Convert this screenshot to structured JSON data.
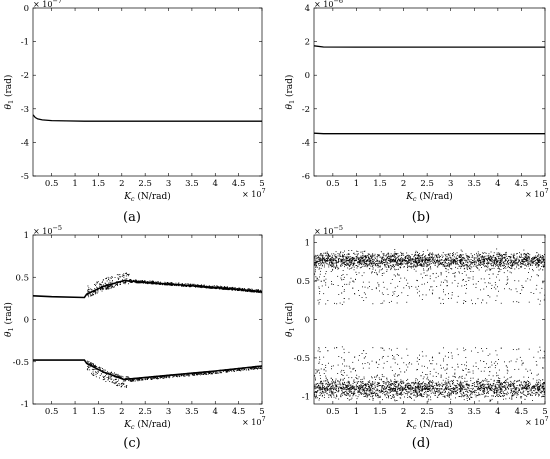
{
  "chart_data": [
    {
      "id": "a",
      "type": "line",
      "caption": "(a)",
      "xlabel_sym": "K",
      "xlabel_sub": "c",
      "xlabel_unit": " (N/rad)",
      "ylabel_sym": "θ",
      "ylabel_sub": "1",
      "ylabel_unit": " (rad)",
      "y_multiplier_base": "× 10",
      "y_multiplier_exp": "−7",
      "x_multiplier_base": "× 10",
      "x_multiplier_exp": "7",
      "xlim": [
        0.1,
        5
      ],
      "ylim": [
        -5,
        0
      ],
      "xticks": [
        0.5,
        1,
        1.5,
        2,
        2.5,
        3,
        3.5,
        4,
        4.5,
        5
      ],
      "xtick_labels": [
        "0.5",
        "1",
        "1.5",
        "2",
        "2.5",
        "3",
        "3.5",
        "4",
        "4.5",
        "5"
      ],
      "yticks": [
        -5,
        -4,
        -3,
        -2,
        -1,
        0
      ],
      "ytick_labels": [
        "-5",
        "-4",
        "-3",
        "-2",
        "-1",
        "0"
      ],
      "series": [
        {
          "x": [
            0.1,
            0.15,
            0.2,
            0.3,
            0.5,
            0.8,
            1.2,
            2,
            3,
            4,
            5
          ],
          "y": [
            -3.18,
            -3.26,
            -3.3,
            -3.33,
            -3.35,
            -3.36,
            -3.37,
            -3.37,
            -3.37,
            -3.37,
            -3.37
          ]
        }
      ]
    },
    {
      "id": "b",
      "type": "line",
      "caption": "(b)",
      "xlabel_sym": "K",
      "xlabel_sub": "c",
      "xlabel_unit": " (N/rad)",
      "ylabel_sym": "θ",
      "ylabel_sub": "1",
      "ylabel_unit": " (rad)",
      "y_multiplier_base": "× 10",
      "y_multiplier_exp": "−6",
      "x_multiplier_base": "× 10",
      "x_multiplier_exp": "7",
      "xlim": [
        0.1,
        5
      ],
      "ylim": [
        -6,
        4
      ],
      "xticks": [
        0.5,
        1,
        1.5,
        2,
        2.5,
        3,
        3.5,
        4,
        4.5,
        5
      ],
      "xtick_labels": [
        "0.5",
        "1",
        "1.5",
        "2",
        "2.5",
        "3",
        "3.5",
        "4",
        "4.5",
        "5"
      ],
      "yticks": [
        -6,
        -4,
        -2,
        0,
        2,
        4
      ],
      "ytick_labels": [
        "-6",
        "-4",
        "-2",
        "0",
        "2",
        "4"
      ],
      "series": [
        {
          "x": [
            0.1,
            0.3,
            1,
            5
          ],
          "y": [
            1.75,
            1.68,
            1.67,
            1.67
          ]
        },
        {
          "x": [
            0.1,
            0.3,
            1,
            5
          ],
          "y": [
            -3.45,
            -3.48,
            -3.48,
            -3.48
          ]
        }
      ]
    },
    {
      "id": "c",
      "type": "scatter",
      "caption": "(c)",
      "xlabel_sym": "K",
      "xlabel_sub": "c",
      "xlabel_unit": " (N/rad)",
      "ylabel_sym": "θ",
      "ylabel_sub": "1",
      "ylabel_unit": " (rad)",
      "y_multiplier_base": "× 10",
      "y_multiplier_exp": "−5",
      "x_multiplier_base": "× 10",
      "x_multiplier_exp": "7",
      "xlim": [
        0.1,
        5
      ],
      "ylim": [
        -1,
        1
      ],
      "xticks": [
        0.5,
        1,
        1.5,
        2,
        2.5,
        3,
        3.5,
        4,
        4.5,
        5
      ],
      "xtick_labels": [
        "0.5",
        "1",
        "1.5",
        "2",
        "2.5",
        "3",
        "3.5",
        "4",
        "4.5",
        "5"
      ],
      "yticks": [
        -1,
        -0.5,
        0,
        0.5,
        1
      ],
      "ytick_labels": [
        "-1",
        "-0.5",
        "0",
        "0.5",
        "1"
      ],
      "series": [
        {
          "x": [
            0.1,
            0.5,
            1.2,
            1.25,
            1.6,
            2.05,
            3,
            4,
            5
          ],
          "y": [
            0.28,
            0.27,
            0.26,
            0.3,
            0.39,
            0.46,
            0.42,
            0.38,
            0.33
          ],
          "scatter_above": 0.1,
          "scatter_below": 0.04,
          "scatter_from": 1.25,
          "scatter_to": 2.15
        },
        {
          "x": [
            0.1,
            0.5,
            1.2,
            1.25,
            1.6,
            2.05,
            3,
            4,
            5
          ],
          "y": [
            -0.48,
            -0.48,
            -0.48,
            -0.52,
            -0.62,
            -0.71,
            -0.66,
            -0.61,
            -0.55
          ],
          "scatter_above": 0.04,
          "scatter_below": 0.1,
          "scatter_from": 1.25,
          "scatter_to": 2.15
        }
      ]
    },
    {
      "id": "d",
      "type": "scatter",
      "caption": "(d)",
      "xlabel_sym": "K",
      "xlabel_sub": "c",
      "xlabel_unit": " (N/rad)",
      "ylabel_sym": "θ",
      "ylabel_sub": "1",
      "ylabel_unit": " (rad)",
      "y_multiplier_base": "× 10",
      "y_multiplier_exp": "−5",
      "x_multiplier_base": "× 10",
      "x_multiplier_exp": "7",
      "xlim": [
        0.1,
        5
      ],
      "ylim": [
        -1.1,
        1.1
      ],
      "xticks": [
        0.5,
        1,
        1.5,
        2,
        2.5,
        3,
        3.5,
        4,
        4.5,
        5
      ],
      "xtick_labels": [
        "0.5",
        "1",
        "1.5",
        "2",
        "2.5",
        "3",
        "3.5",
        "4",
        "4.5",
        "5"
      ],
      "yticks": [
        -1,
        -0.5,
        0,
        0.5,
        1
      ],
      "ytick_labels": [
        "-1",
        "-0.5",
        "0",
        "0.5",
        "1"
      ],
      "bands": [
        {
          "center": 0.78,
          "dense_spread": 0.05,
          "tail_to": 0.2
        },
        {
          "center": -0.9,
          "dense_spread": 0.06,
          "tail_to": -0.35
        }
      ]
    }
  ]
}
